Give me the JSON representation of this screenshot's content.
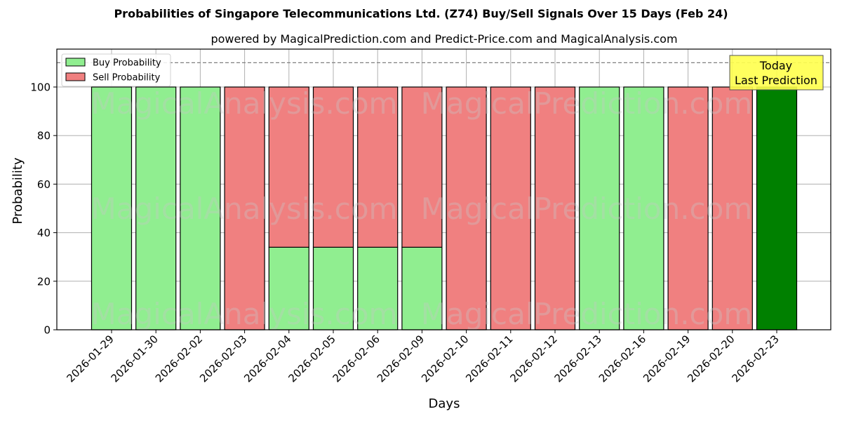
{
  "title": "Probabilities of Singapore Telecommunications Ltd. (Z74) Buy/Sell Signals Over 15 Days (Feb 24)",
  "subtitle": "powered by MagicalPrediction.com and Predict-Price.com and MagicalAnalysis.com",
  "colors": {
    "buy": "#90ee90",
    "sell": "#f08080",
    "today": "#008000",
    "annotation_bg": "#ffff4d",
    "grid": "#b0b0b0",
    "ref_line": "#808080"
  },
  "legend": {
    "buy_label": "Buy Probability",
    "sell_label": "Sell Probability"
  },
  "annotation": {
    "line1": "Today",
    "line2": "Last Prediction"
  },
  "watermarks": [
    "MagicalAnalysis.com",
    "MagicalPrediction.com"
  ],
  "chart_data": {
    "type": "bar",
    "stacked": true,
    "title": "Probabilities of Singapore Telecommunications Ltd. (Z74) Buy/Sell Signals Over 15 Days (Feb 24)",
    "subtitle": "powered by MagicalPrediction.com and Predict-Price.com and MagicalAnalysis.com",
    "xlabel": "Days",
    "ylabel": "Probability",
    "ylim": [
      0,
      115
    ],
    "yticks": [
      0,
      20,
      40,
      60,
      80,
      100
    ],
    "grid": true,
    "legend_position": "upper left",
    "reference_line": {
      "y": 110,
      "style": "dashed"
    },
    "categories": [
      "2026-01-29",
      "2026-01-30",
      "2026-02-02",
      "2026-02-03",
      "2026-02-04",
      "2026-02-05",
      "2026-02-06",
      "2026-02-09",
      "2026-02-10",
      "2026-02-11",
      "2026-02-12",
      "2026-02-13",
      "2026-02-16",
      "2026-02-19",
      "2026-02-20",
      "2026-02-23"
    ],
    "series": [
      {
        "name": "Buy Probability",
        "values": [
          100,
          100,
          100,
          0,
          34,
          34,
          34,
          34,
          0,
          0,
          0,
          100,
          100,
          0,
          0,
          100
        ]
      },
      {
        "name": "Sell Probability",
        "values": [
          0,
          0,
          0,
          100,
          66,
          66,
          66,
          66,
          100,
          100,
          100,
          0,
          0,
          100,
          100,
          0
        ]
      }
    ],
    "highlight": {
      "index": 15,
      "label": "Today / Last Prediction",
      "color": "#008000"
    }
  }
}
